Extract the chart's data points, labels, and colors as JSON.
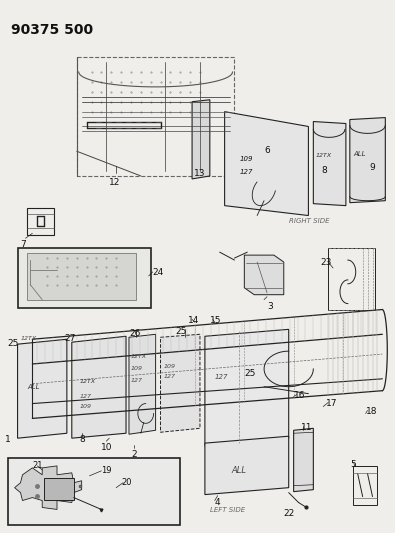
{
  "title": "90375 500",
  "bg": "#f0eeea",
  "lc": "#222222",
  "tc": "#111111",
  "right_side": "RIGHT SIDE",
  "left_side": "LEFT SIDE",
  "title_fs": 10,
  "num_fs": 6.5,
  "small_fs": 5.0
}
